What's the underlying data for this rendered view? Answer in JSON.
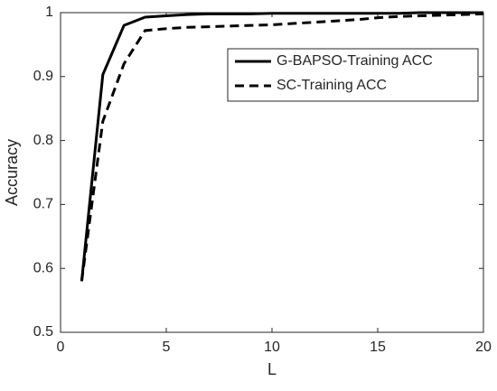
{
  "chart_data": {
    "type": "line",
    "xlabel": "L",
    "ylabel": "Accuracy",
    "x": [
      1,
      2,
      3,
      4,
      5,
      6,
      7,
      8,
      9,
      10,
      11,
      12,
      13,
      14,
      15,
      16,
      17,
      18,
      19,
      20
    ],
    "series": [
      {
        "name": "G-BAPSO-Training ACC",
        "color": "#000000",
        "line_style": "solid",
        "values": [
          0.58,
          0.903,
          0.98,
          0.993,
          0.995,
          0.997,
          0.998,
          0.998,
          0.998,
          0.999,
          0.999,
          0.999,
          0.999,
          0.999,
          0.999,
          0.999,
          1,
          1,
          1,
          1
        ]
      },
      {
        "name": "SC-Training ACC",
        "color": "#000000",
        "line_style": "dashed",
        "values": [
          0.58,
          0.83,
          0.92,
          0.972,
          0.975,
          0.977,
          0.978,
          0.979,
          0.98,
          0.981,
          0.983,
          0.985,
          0.987,
          0.989,
          0.992,
          0.994,
          0.995,
          0.996,
          0.997,
          0.998
        ]
      }
    ],
    "xlim": [
      0,
      20
    ],
    "xticks": [
      0,
      5,
      10,
      15,
      20
    ],
    "ylim": [
      0.5,
      1
    ],
    "yticks": [
      0.5,
      0.6,
      0.7,
      0.8,
      0.9,
      1
    ],
    "grid": false,
    "legend": "northeast"
  }
}
